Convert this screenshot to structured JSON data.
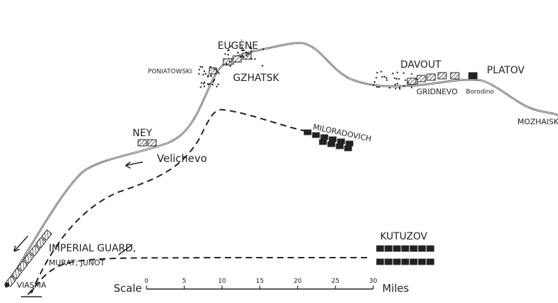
{
  "labels": {
    "eugene": "EUGÈNE",
    "poniatowski": "PONIATOWSKI",
    "gzhatsk": "GZHATSK",
    "davout": "DAVOUT",
    "platov": "PLATOV",
    "gridnevo": "GRIDNEVO",
    "borodino": "Borodino",
    "mozhaisk": "MOZHAISK",
    "ney": "NEY",
    "velichevo": "Velichevo",
    "miloradovich": "MILORADOVICH",
    "kutuzov": "KUTUZOV",
    "imperial_guard": "IMPERIAL GUARD,",
    "murat_junot": "MURAT; JUNOT",
    "viasma": "VIASMA"
  },
  "scale": {
    "label": "Scale",
    "ticks": [
      0,
      5,
      10,
      15,
      20,
      25,
      30
    ],
    "unit": "Miles"
  }
}
